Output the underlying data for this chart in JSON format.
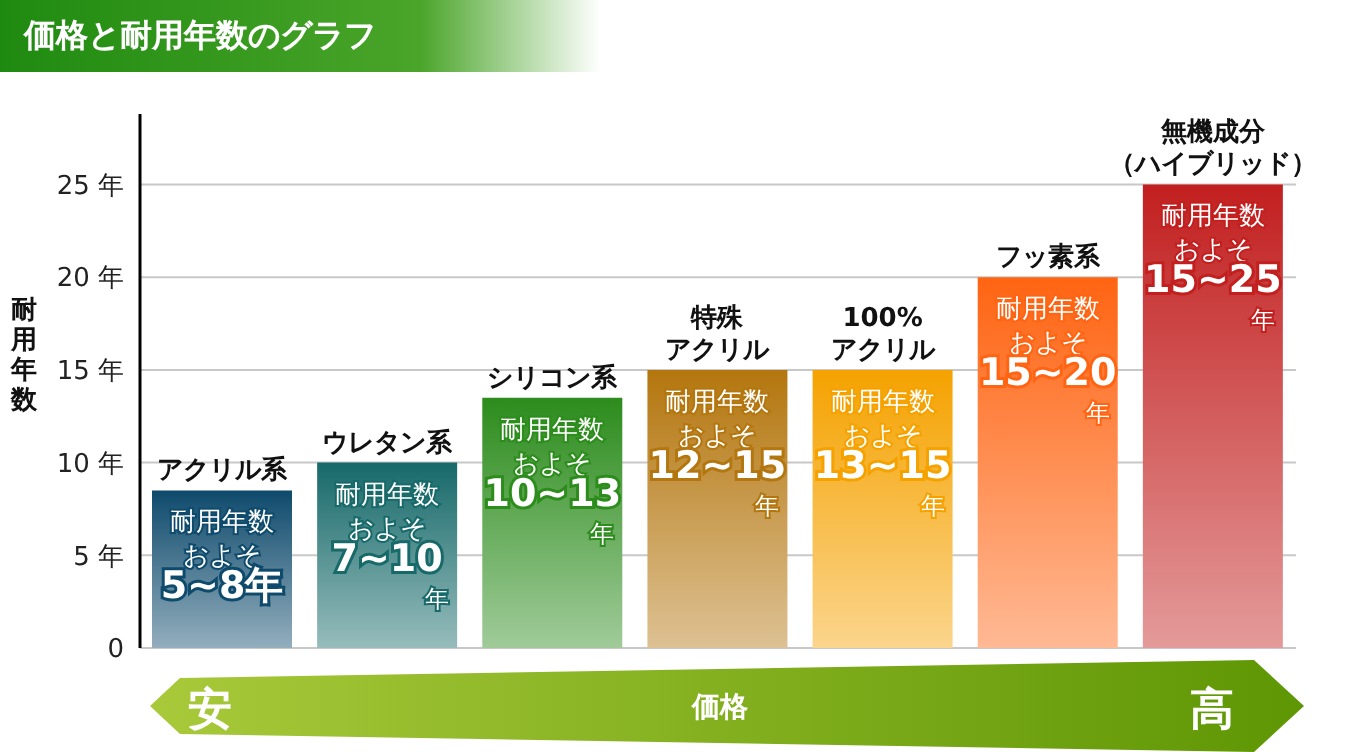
{
  "chart_data": {
    "type": "bar",
    "title": "価格と耐用年数のグラフ",
    "xlabel": "価格",
    "ylabel": "耐用年数",
    "categories": [
      "アクリル系",
      "ウレタン系",
      "シリコン系",
      "特殊アクリル",
      "100%アクリル",
      "フッ素系",
      "無機成分（ハイブリッド）"
    ],
    "values": [
      8.5,
      10,
      13.5,
      15,
      15,
      20,
      25
    ],
    "colors": [
      "#0e4a6c",
      "#17696a",
      "#2c8c1c",
      "#b4760e",
      "#f5a200",
      "#ff6412",
      "#c21f1f"
    ],
    "value_labels": [
      "耐用年数およそ5~8年",
      "耐用年数およそ7~10年",
      "耐用年数およそ10~13年",
      "耐用年数およそ12~15年",
      "耐用年数およそ13~15年",
      "耐用年数およそ15~20年",
      "耐用年数およそ15~25年"
    ],
    "ylim": [
      0,
      28.8
    ],
    "yticks": [
      0,
      {
        "value": 5,
        "label": "5 年"
      },
      {
        "value": 10,
        "label": "10 年"
      },
      {
        "value": 15,
        "label": "15 年"
      },
      {
        "value": 20,
        "label": "20 年"
      },
      {
        "value": 25,
        "label": "25 年"
      }
    ],
    "grid": "y",
    "annotations": [
      "安",
      "高"
    ]
  }
}
